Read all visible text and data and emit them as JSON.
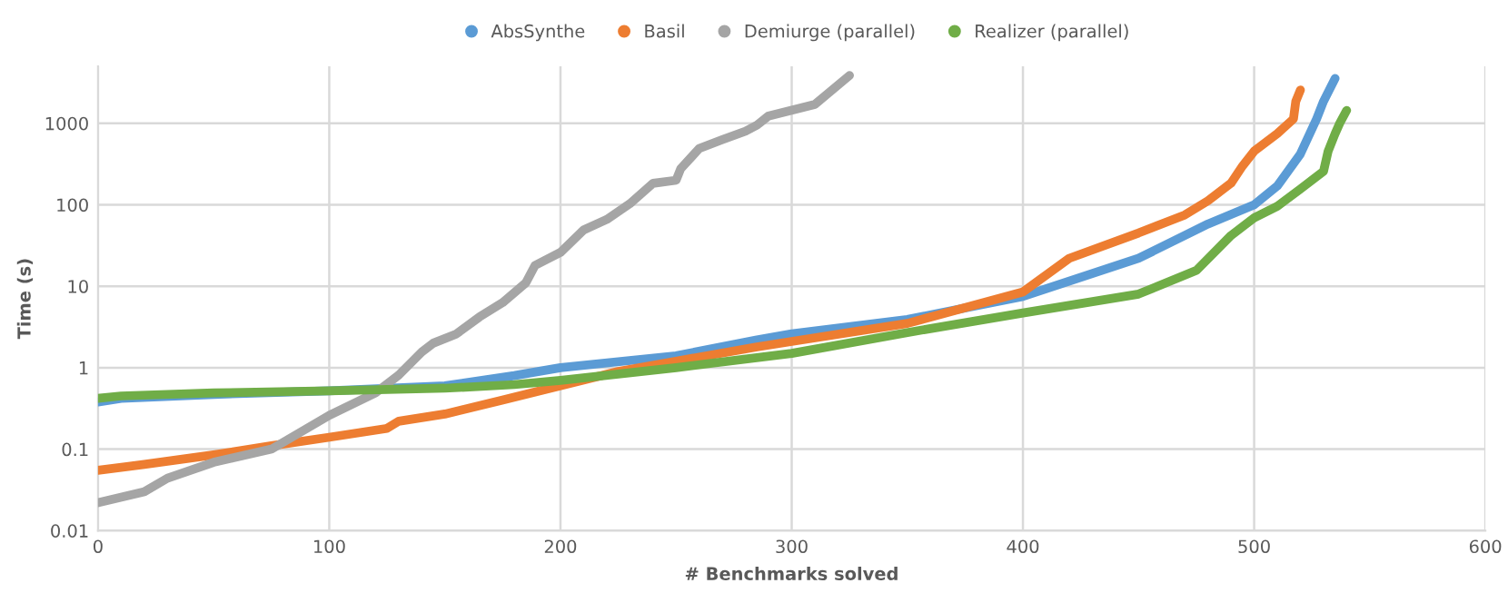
{
  "chart_data": {
    "type": "line",
    "xlabel": "# Benchmarks solved",
    "ylabel": "Time (s)",
    "log": "y",
    "grid": true,
    "legend": "top",
    "marker": "none",
    "line_style": "solid",
    "xlim": [
      0,
      600
    ],
    "xticks": [
      0,
      100,
      200,
      300,
      400,
      500,
      600
    ],
    "ylim": [
      0.01,
      5000
    ],
    "yticks": [
      0.01,
      0.1,
      1,
      10,
      100,
      1000
    ],
    "series": [
      {
        "name": "AbsSynthe",
        "color": "#5b9bd5",
        "x": [
          0,
          10,
          50,
          100,
          150,
          180,
          200,
          250,
          285,
          300,
          350,
          400,
          450,
          480,
          500,
          510,
          520,
          527,
          530,
          535
        ],
        "values": [
          0.38,
          0.42,
          0.47,
          0.52,
          0.6,
          0.8,
          1.0,
          1.4,
          2.2,
          2.6,
          3.9,
          7.5,
          22,
          58,
          100,
          170,
          420,
          1130,
          1860,
          3550
        ]
      },
      {
        "name": "Basil",
        "color": "#ed7d31",
        "x": [
          0,
          20,
          50,
          75,
          100,
          125,
          130,
          150,
          175,
          200,
          225,
          250,
          285,
          300,
          350,
          400,
          420,
          450,
          470,
          480,
          490,
          495,
          500,
          510,
          517,
          518,
          520
        ],
        "values": [
          0.055,
          0.065,
          0.085,
          0.11,
          0.14,
          0.18,
          0.22,
          0.27,
          0.4,
          0.6,
          0.9,
          1.2,
          1.8,
          2.1,
          3.5,
          8.5,
          22,
          45,
          75,
          112,
          184,
          300,
          455,
          745,
          1130,
          1860,
          2560
        ]
      },
      {
        "name": "Demiurge (parallel)",
        "color": "#a5a5a5",
        "x": [
          0,
          20,
          30,
          50,
          75,
          100,
          120,
          130,
          140,
          145,
          155,
          165,
          175,
          185,
          189,
          200,
          210,
          220,
          230,
          240,
          250,
          252,
          260,
          270,
          280,
          285,
          290,
          310,
          325
        ],
        "values": [
          0.022,
          0.03,
          0.044,
          0.069,
          0.1,
          0.26,
          0.49,
          0.81,
          1.56,
          2.0,
          2.6,
          4.2,
          6.3,
          11,
          18,
          26,
          49,
          66,
          103,
          183,
          200,
          277,
          490,
          630,
          800,
          950,
          1230,
          1700,
          3860
        ]
      },
      {
        "name": "Realizer (parallel)",
        "color": "#70ad47",
        "x": [
          0,
          10,
          50,
          100,
          150,
          180,
          200,
          250,
          300,
          350,
          400,
          450,
          475,
          490,
          500,
          510,
          520,
          530,
          532,
          535,
          537,
          540
        ],
        "values": [
          0.42,
          0.45,
          0.49,
          0.52,
          0.56,
          0.62,
          0.7,
          1.0,
          1.5,
          2.7,
          4.7,
          8.0,
          15.6,
          42,
          69,
          96,
          156,
          257,
          455,
          745,
          1000,
          1440
        ]
      }
    ]
  }
}
